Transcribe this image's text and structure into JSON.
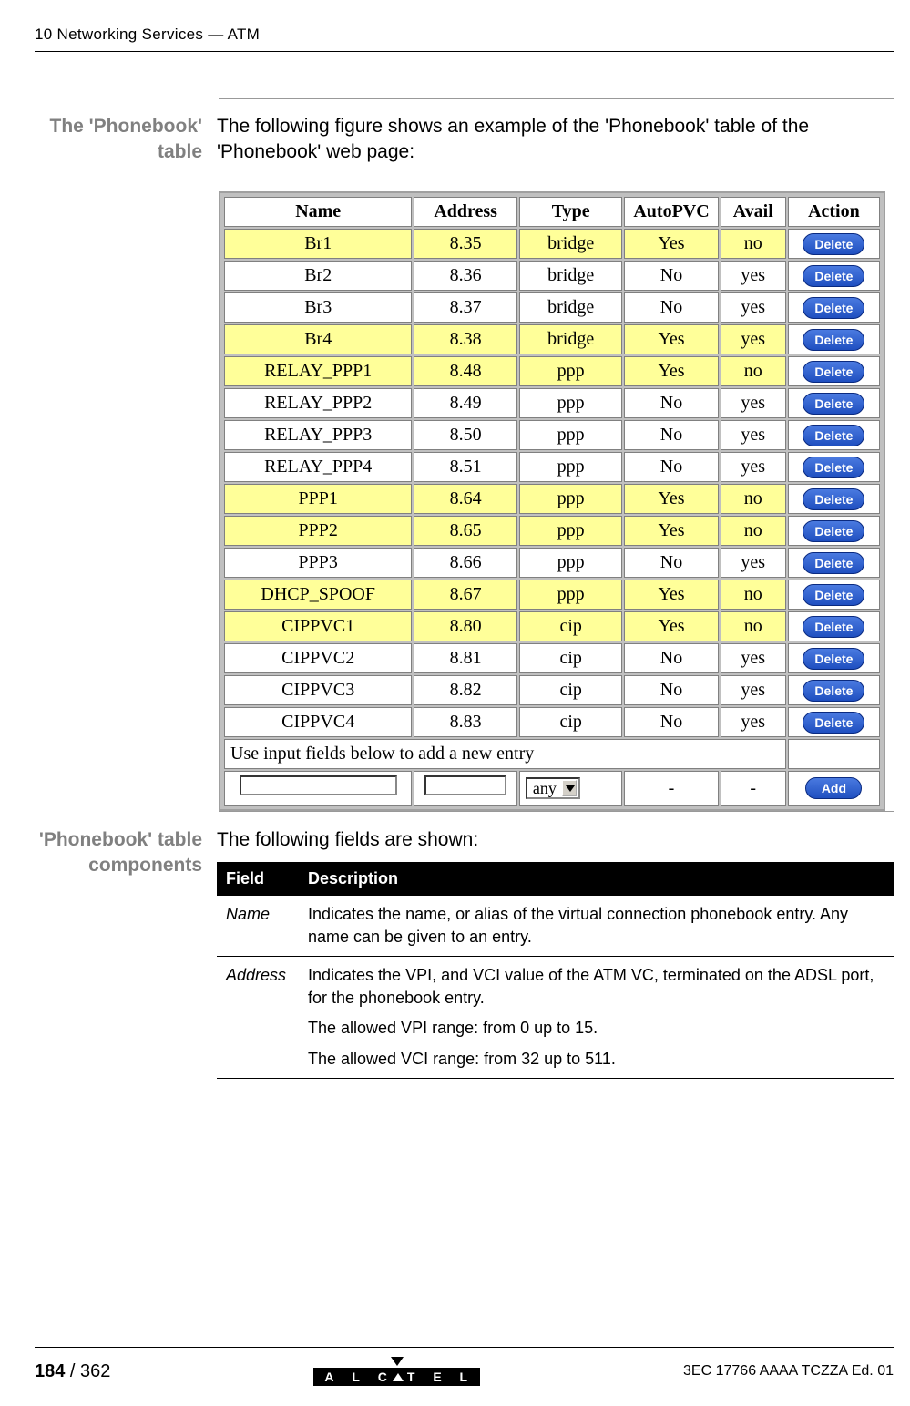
{
  "header": "10 Networking Services — ATM",
  "section1": {
    "heading": "The 'Phonebook' table",
    "intro": "The following figure shows an example of the 'Phonebook' table of the 'Phonebook' web page:"
  },
  "phonebook": {
    "columns": [
      "Name",
      "Address",
      "Type",
      "AutoPVC",
      "Avail",
      "Action"
    ],
    "col_widths": [
      "200px",
      "110px",
      "110px",
      "100px",
      "70px",
      "98px"
    ],
    "highlight_color": "#ffff99",
    "delete_label": "Delete",
    "add_label": "Add",
    "rows": [
      {
        "name": "Br1",
        "address": "8.35",
        "type": "bridge",
        "autopvc": "Yes",
        "avail": "no",
        "hl": true
      },
      {
        "name": "Br2",
        "address": "8.36",
        "type": "bridge",
        "autopvc": "No",
        "avail": "yes",
        "hl": false
      },
      {
        "name": "Br3",
        "address": "8.37",
        "type": "bridge",
        "autopvc": "No",
        "avail": "yes",
        "hl": false
      },
      {
        "name": "Br4",
        "address": "8.38",
        "type": "bridge",
        "autopvc": "Yes",
        "avail": "yes",
        "hl": true
      },
      {
        "name": "RELAY_PPP1",
        "address": "8.48",
        "type": "ppp",
        "autopvc": "Yes",
        "avail": "no",
        "hl": true
      },
      {
        "name": "RELAY_PPP2",
        "address": "8.49",
        "type": "ppp",
        "autopvc": "No",
        "avail": "yes",
        "hl": false
      },
      {
        "name": "RELAY_PPP3",
        "address": "8.50",
        "type": "ppp",
        "autopvc": "No",
        "avail": "yes",
        "hl": false
      },
      {
        "name": "RELAY_PPP4",
        "address": "8.51",
        "type": "ppp",
        "autopvc": "No",
        "avail": "yes",
        "hl": false
      },
      {
        "name": "PPP1",
        "address": "8.64",
        "type": "ppp",
        "autopvc": "Yes",
        "avail": "no",
        "hl": true
      },
      {
        "name": "PPP2",
        "address": "8.65",
        "type": "ppp",
        "autopvc": "Yes",
        "avail": "no",
        "hl": true
      },
      {
        "name": "PPP3",
        "address": "8.66",
        "type": "ppp",
        "autopvc": "No",
        "avail": "yes",
        "hl": false
      },
      {
        "name": "DHCP_SPOOF",
        "address": "8.67",
        "type": "ppp",
        "autopvc": "Yes",
        "avail": "no",
        "hl": true
      },
      {
        "name": "CIPPVC1",
        "address": "8.80",
        "type": "cip",
        "autopvc": "Yes",
        "avail": "no",
        "hl": true
      },
      {
        "name": "CIPPVC2",
        "address": "8.81",
        "type": "cip",
        "autopvc": "No",
        "avail": "yes",
        "hl": false
      },
      {
        "name": "CIPPVC3",
        "address": "8.82",
        "type": "cip",
        "autopvc": "No",
        "avail": "yes",
        "hl": false
      },
      {
        "name": "CIPPVC4",
        "address": "8.83",
        "type": "cip",
        "autopvc": "No",
        "avail": "yes",
        "hl": false
      }
    ],
    "instruction": "Use input fields below to add a new entry",
    "new_entry": {
      "type_selected": "any",
      "autopvc": "-",
      "avail": "-"
    }
  },
  "section2": {
    "heading": "'Phonebook' table components",
    "intro": "The following fields are shown:",
    "fields_header": [
      "Field",
      "Description"
    ],
    "fields": [
      {
        "name": "Name",
        "desc": [
          "Indicates the name, or alias of the virtual connection phonebook entry. Any name can be given to an entry."
        ]
      },
      {
        "name": "Address",
        "desc": [
          "Indicates the VPI, and VCI value of the ATM VC, terminated on the ADSL port, for the phonebook entry.",
          "The allowed VPI range: from 0 up to 15.",
          "The allowed VCI range: from 32 up to 511."
        ]
      }
    ]
  },
  "footer": {
    "page": "184",
    "total": " / 362",
    "brand": "ALCATEL",
    "docref": "3EC 17766 AAAA TCZZA Ed. 01"
  },
  "colors": {
    "pill_bg_top": "#4a7ae0",
    "pill_bg_bottom": "#1f4fc0",
    "pill_border": "#0a2a80",
    "table_border": "#808080",
    "side_heading": "#808080"
  }
}
